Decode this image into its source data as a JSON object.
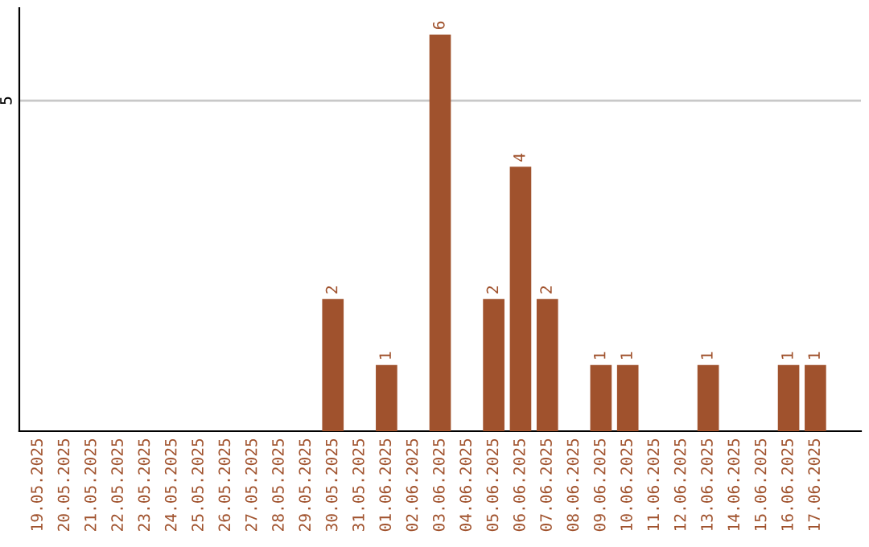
{
  "chart_data": {
    "type": "bar",
    "categories": [
      "19.05.2025",
      "20.05.2025",
      "21.05.2025",
      "22.05.2025",
      "23.05.2025",
      "24.05.2025",
      "25.05.2025",
      "26.05.2025",
      "27.05.2025",
      "28.05.2025",
      "29.05.2025",
      "30.05.2025",
      "31.05.2025",
      "01.06.2025",
      "02.06.2025",
      "03.06.2025",
      "04.06.2025",
      "05.06.2025",
      "06.06.2025",
      "07.06.2025",
      "08.06.2025",
      "09.06.2025",
      "10.06.2025",
      "11.06.2025",
      "12.06.2025",
      "13.06.2025",
      "14.06.2025",
      "15.06.2025",
      "16.06.2025",
      "17.06.2025"
    ],
    "values": [
      0,
      0,
      0,
      0,
      0,
      0,
      0,
      0,
      0,
      0,
      0,
      2,
      0,
      1,
      0,
      6,
      0,
      2,
      4,
      2,
      0,
      1,
      1,
      0,
      0,
      1,
      0,
      0,
      1,
      1
    ],
    "value_labels": [
      null,
      null,
      null,
      null,
      null,
      null,
      null,
      null,
      null,
      null,
      null,
      "2",
      null,
      "1",
      null,
      "6",
      null,
      "2",
      "4",
      "2",
      null,
      "1",
      "1",
      null,
      null,
      "1",
      null,
      null,
      "1",
      "1"
    ],
    "color": "#a0522d",
    "ylim": [
      0,
      6.4
    ],
    "yticks": [
      5
    ],
    "grid": "y",
    "legend": false
  }
}
